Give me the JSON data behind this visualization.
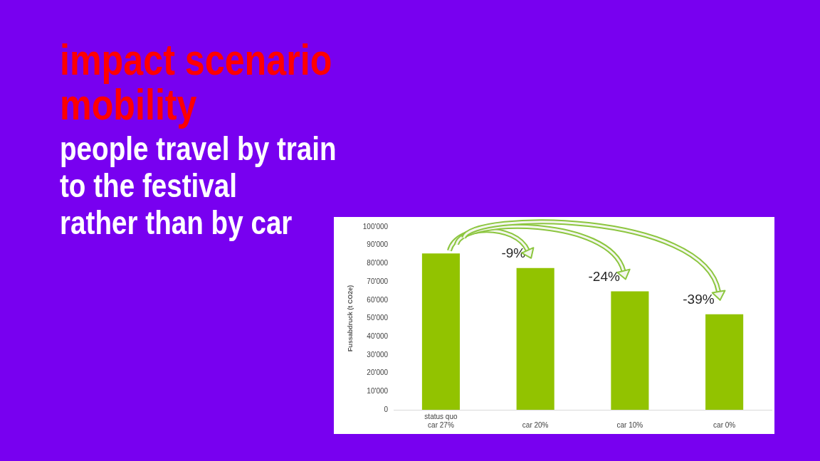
{
  "chart_data": {
    "type": "bar",
    "title": "impact scenario mobility",
    "subtitle": "people travel by train\nto the festival\nrather than by car",
    "ylabel": "Fussabdruck (t CO2e)",
    "categories": [
      "status quo\ncar 27%",
      "car 20%",
      "car 10%",
      "car 0%"
    ],
    "values": [
      85500,
      77500,
      64800,
      52200
    ],
    "color": "#92c300",
    "ylim": [
      0,
      100000
    ],
    "yticks": [
      0,
      {
        "value": 10000,
        "label": "10'000"
      },
      {
        "value": 20000,
        "label": "20'000"
      },
      {
        "value": 30000,
        "label": "30'000"
      },
      {
        "value": 40000,
        "label": "40'000"
      },
      {
        "value": 50000,
        "label": "50'000"
      },
      {
        "value": 60000,
        "label": "60'000"
      },
      {
        "value": 70000,
        "label": "70'000"
      },
      {
        "value": 80000,
        "label": "80'000"
      },
      {
        "value": 90000,
        "label": "90'000"
      },
      {
        "value": 100000,
        "label": "100'000"
      }
    ],
    "grid": false,
    "annotations": [
      {
        "text": "-9%",
        "x": "car 20%",
        "y": 77500
      },
      {
        "text": "-24%",
        "x": "car 10%",
        "y": 64800
      },
      {
        "text": "-39%",
        "x": "car 0%",
        "y": 52200
      }
    ]
  }
}
